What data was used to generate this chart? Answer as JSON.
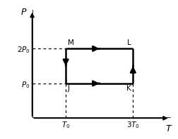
{
  "xlabel": "T",
  "ylabel": "P",
  "points": {
    "M": [
      1,
      2
    ],
    "L": [
      3,
      2
    ],
    "K": [
      3,
      1
    ],
    "J": [
      1,
      1
    ]
  },
  "xtick_vals": [
    1,
    3
  ],
  "xtick_labels": [
    "$T_0$",
    "$3T_0$"
  ],
  "ytick_vals": [
    1,
    2
  ],
  "ytick_labels": [
    "$P_0$",
    "$2P_0$"
  ],
  "xlim": [
    0,
    4.2
  ],
  "ylim": [
    0,
    3.2
  ],
  "cycle_color": "black",
  "dashed_color": "black",
  "background": "white",
  "lw": 1.8,
  "arrow_mut_scale": 8
}
